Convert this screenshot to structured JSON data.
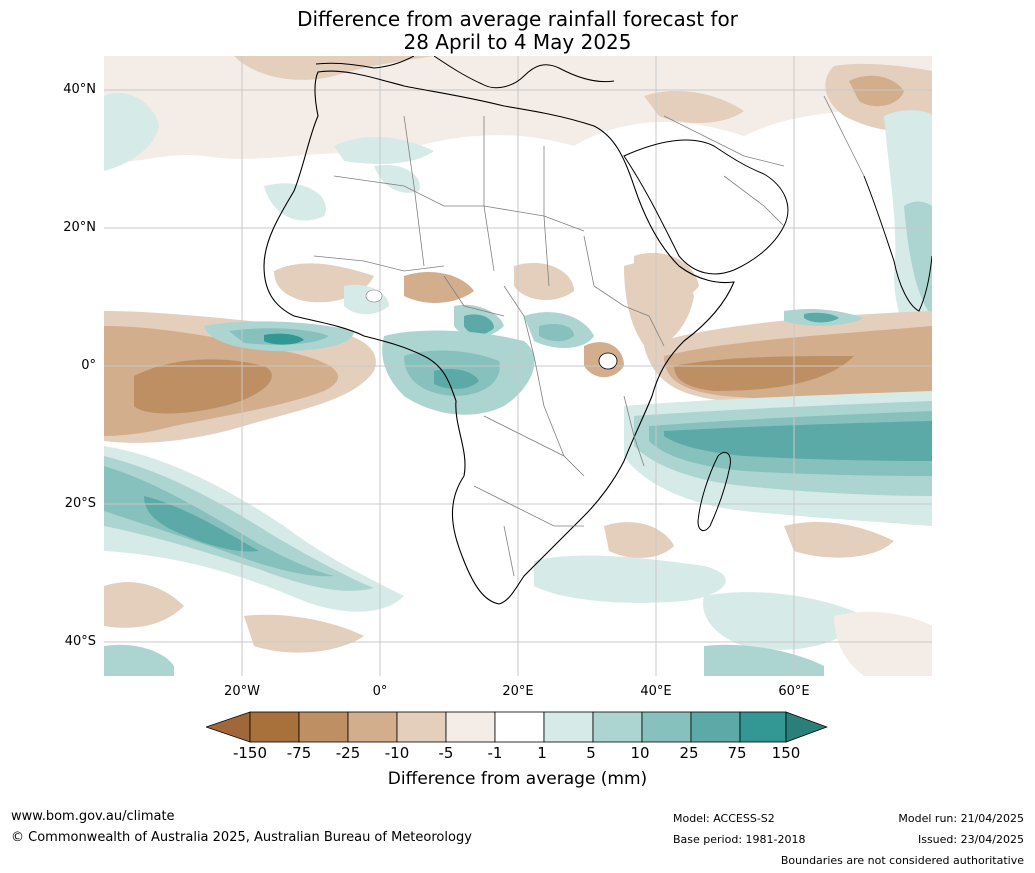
{
  "title": {
    "line1": "Difference from average rainfall forecast for",
    "line2": "28 April to 4 May 2025"
  },
  "map": {
    "region": "Africa",
    "lat_labels": [
      "40°N",
      "20°N",
      "0°",
      "20°S",
      "40°S"
    ],
    "lon_labels": [
      "20°W",
      "0°",
      "20°E",
      "40°E",
      "60°E"
    ],
    "colors": {
      "dry_extreme": "#a0683a",
      "dry_75": "#bf8f64",
      "dry_25": "#d2ae8d",
      "dry_10": "#e3cfbc",
      "dry_5": "#f4ece6",
      "neutral": "#ffffff",
      "wet_5": "#d6eae8",
      "wet_10": "#acd5d2",
      "wet_25": "#86c1be",
      "wet_75": "#5caaa8",
      "wet_150": "#339894",
      "wet_extreme": "#2a7f7b",
      "coast": "#000000",
      "border": "#808080",
      "grid": "#c8c8c8"
    }
  },
  "legend": {
    "ticks": [
      "-150",
      "-75",
      "-25",
      "-10",
      "-5",
      "-1",
      "1",
      "5",
      "10",
      "25",
      "75",
      "150"
    ],
    "title": "Difference from average (mm)"
  },
  "footer": {
    "website": "www.bom.gov.au/climate",
    "copyright": "© Commonwealth of Australia 2025, Australian Bureau of Meteorology",
    "model": "Model: ACCESS-S2",
    "base_period": "Base period: 1981-2018",
    "model_run": "Model run: 21/04/2025",
    "issued": "Issued: 23/04/2025",
    "disclaimer": "Boundaries are not considered authoritative"
  }
}
